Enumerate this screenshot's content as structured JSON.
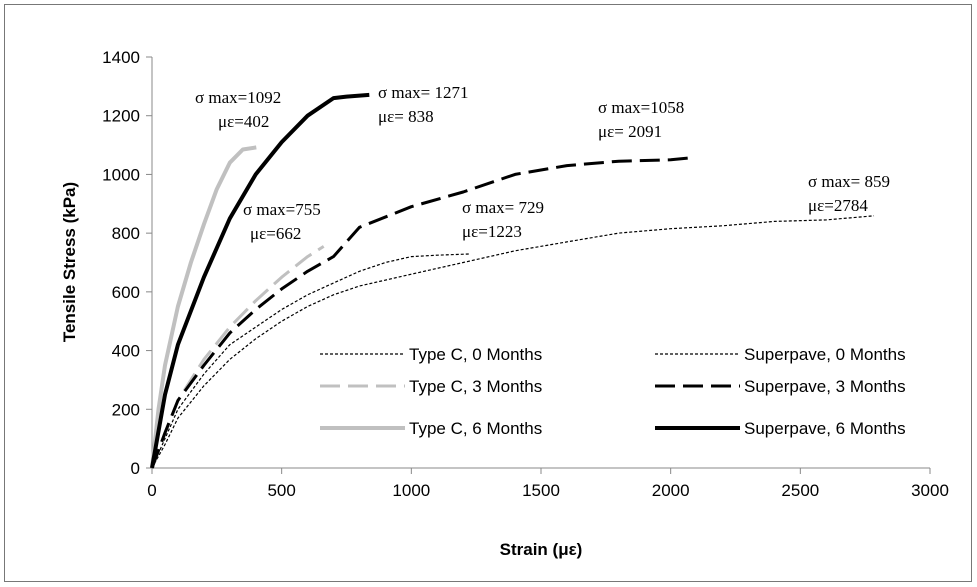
{
  "chart_data": {
    "type": "line",
    "xlabel": "Strain (με)",
    "ylabel": "Tensile  Stress (kPa)",
    "xlim": [
      0,
      3000
    ],
    "xticks": [
      0,
      500,
      1000,
      1500,
      2000,
      2500,
      3000
    ],
    "ylim": [
      0,
      1400
    ],
    "yticks": [
      0,
      200,
      400,
      600,
      800,
      1000,
      1200,
      1400
    ],
    "grid": false,
    "legend": "lower right",
    "series": [
      {
        "name": "Type C, 0 Months",
        "color": "#000000",
        "line_style": "dotted",
        "width": 1.2,
        "x": [
          0,
          50,
          100,
          200,
          300,
          400,
          500,
          600,
          700,
          800,
          900,
          1000,
          1100,
          1223
        ],
        "values": [
          0,
          100,
          200,
          320,
          420,
          480,
          540,
          590,
          630,
          670,
          700,
          720,
          725,
          729
        ]
      },
      {
        "name": "Superpave, 0 Months",
        "color": "#000000",
        "line_style": "dotted",
        "width": 1.2,
        "x": [
          0,
          50,
          100,
          200,
          300,
          400,
          500,
          600,
          700,
          800,
          1000,
          1200,
          1400,
          1600,
          1800,
          2000,
          2200,
          2400,
          2600,
          2784
        ],
        "values": [
          0,
          80,
          170,
          280,
          370,
          440,
          500,
          550,
          590,
          620,
          660,
          700,
          740,
          770,
          800,
          815,
          825,
          840,
          845,
          859
        ]
      },
      {
        "name": "Type C, 3 Months",
        "color": "#c0c0c0",
        "line_style": "dashed",
        "width": 3,
        "x": [
          0,
          50,
          100,
          200,
          300,
          400,
          500,
          600,
          662
        ],
        "values": [
          0,
          120,
          230,
          370,
          480,
          570,
          650,
          720,
          755
        ]
      },
      {
        "name": "Superpave, 3 Months",
        "color": "#000000",
        "line_style": "dashed",
        "width": 3,
        "x": [
          0,
          50,
          100,
          200,
          300,
          400,
          500,
          600,
          700,
          800,
          1000,
          1200,
          1400,
          1600,
          1800,
          2000,
          2091
        ],
        "values": [
          0,
          120,
          230,
          350,
          460,
          540,
          610,
          670,
          720,
          820,
          890,
          940,
          1000,
          1030,
          1045,
          1050,
          1058
        ]
      },
      {
        "name": "Type C, 6 Months",
        "color": "#c0c0c0",
        "line_style": "solid",
        "width": 4,
        "x": [
          0,
          25,
          50,
          100,
          150,
          200,
          250,
          300,
          350,
          402
        ],
        "values": [
          0,
          200,
          350,
          550,
          700,
          830,
          950,
          1040,
          1085,
          1092
        ]
      },
      {
        "name": "Superpave, 6 Months",
        "color": "#000000",
        "line_style": "solid",
        "width": 4,
        "x": [
          0,
          50,
          100,
          200,
          300,
          400,
          500,
          600,
          700,
          750,
          838
        ],
        "values": [
          0,
          250,
          420,
          650,
          850,
          1000,
          1110,
          1200,
          1260,
          1265,
          1271
        ]
      }
    ],
    "annotations": [
      {
        "lines": [
          "σ max=1092",
          "με=402"
        ]
      },
      {
        "lines": [
          "σ max= 1271",
          "με= 838"
        ]
      },
      {
        "lines": [
          "σ max=1058",
          "με= 2091"
        ]
      },
      {
        "lines": [
          "σ max= 859",
          "με=2784"
        ]
      },
      {
        "lines": [
          "σ max=755",
          "με=662"
        ]
      },
      {
        "lines": [
          "σ max= 729",
          "με=1223"
        ]
      }
    ]
  }
}
